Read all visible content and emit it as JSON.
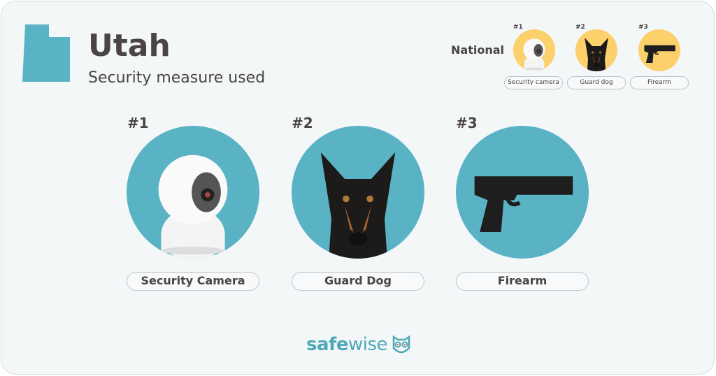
{
  "header": {
    "state": "Utah",
    "subtitle": "Security measure used"
  },
  "national": {
    "label": "National",
    "items": [
      {
        "rank": "#1",
        "label": "Security camera",
        "icon": "security-camera-icon"
      },
      {
        "rank": "#2",
        "label": "Guard dog",
        "icon": "guard-dog-icon"
      },
      {
        "rank": "#3",
        "label": "Firearm",
        "icon": "firearm-icon"
      }
    ]
  },
  "state_items": [
    {
      "rank": "#1",
      "label": "Security Camera",
      "icon": "security-camera-icon"
    },
    {
      "rank": "#2",
      "label": "Guard Dog",
      "icon": "guard-dog-icon"
    },
    {
      "rank": "#3",
      "label": "Firearm",
      "icon": "firearm-icon"
    }
  ],
  "logo": {
    "part1": "safe",
    "part2": "wise"
  },
  "colors": {
    "teal": "#5ab3c4",
    "yellow": "#fcd06b",
    "text": "#4a4444"
  }
}
